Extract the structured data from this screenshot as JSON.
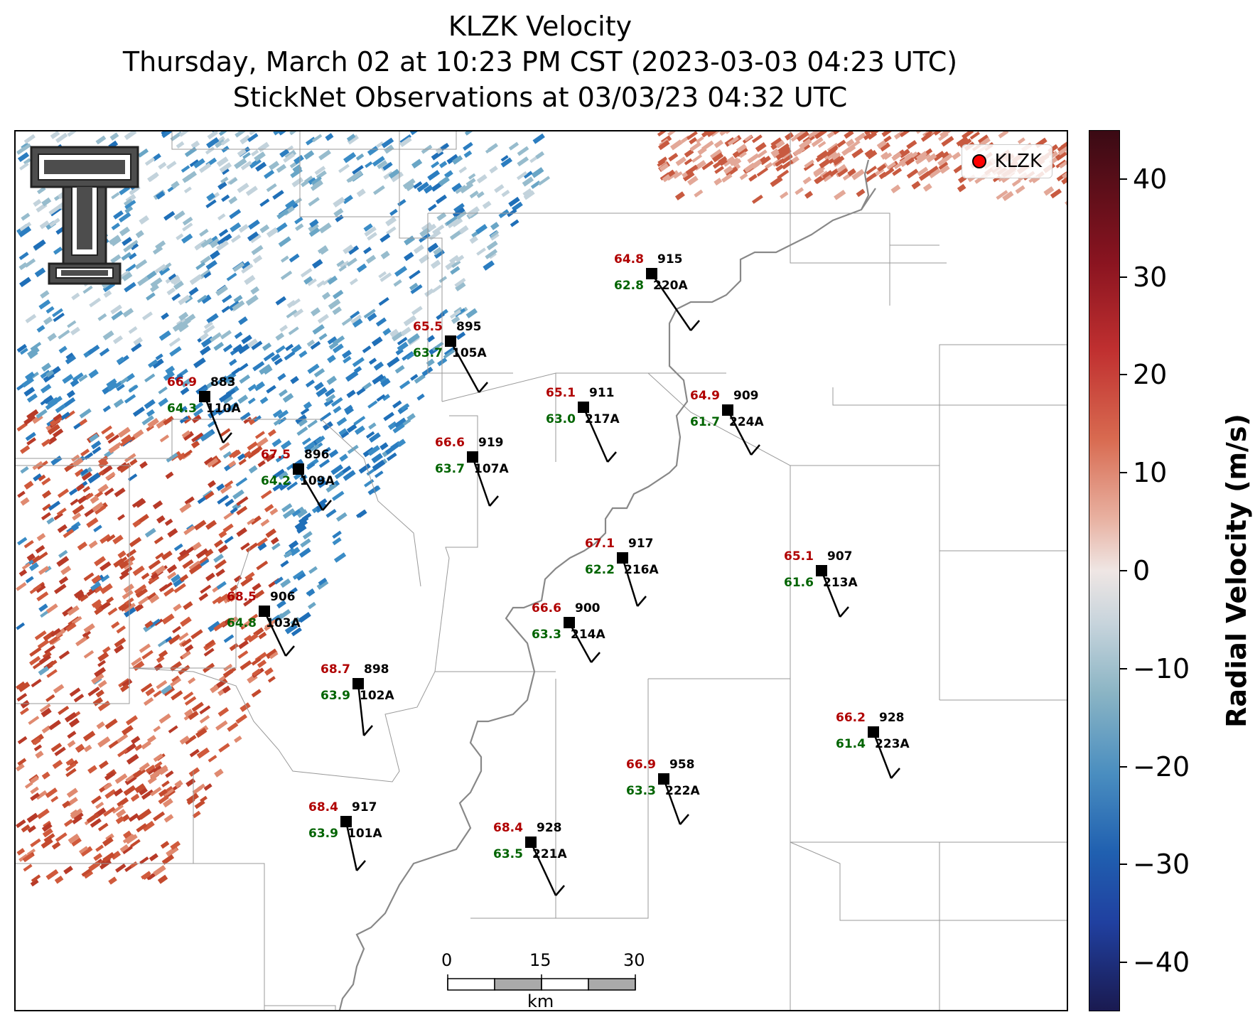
{
  "titles": {
    "line1": "KLZK Velocity",
    "line2": "Thursday, March 02 at 10:23 PM CST (2023-03-03 04:23 UTC)",
    "line3": "StickNet Observations at 03/03/23 04:32 UTC"
  },
  "legend": {
    "radar_label": "KLZK",
    "marker_color": "#ff0000"
  },
  "logo": {
    "name": "double-T-logo"
  },
  "colorbar": {
    "label": "Radial Velocity (m/s)",
    "range": [
      -45,
      45
    ],
    "ticks": [
      "40",
      "30",
      "20",
      "10",
      "0",
      "−10",
      "−20",
      "−30",
      "−40"
    ],
    "colors": {
      "max": "#3a0a14",
      "zero": "#efe6e4",
      "min": "#1a1a50"
    }
  },
  "scale_bar": {
    "labels": [
      "0",
      "15",
      "30"
    ],
    "unit": "km"
  },
  "colors": {
    "temperature": "#b00000",
    "dewpoint": "#006400",
    "river": "#888888",
    "borders": "#999999"
  },
  "stations": [
    {
      "id": "220A",
      "temp": "64.8",
      "dew": "62.8",
      "pres": "915"
    },
    {
      "id": "105A",
      "temp": "65.5",
      "dew": "63.7",
      "pres": "895"
    },
    {
      "id": "110A",
      "temp": "66.9",
      "dew": "64.3",
      "pres": "883"
    },
    {
      "id": "217A",
      "temp": "65.1",
      "dew": "63.0",
      "pres": "911"
    },
    {
      "id": "224A",
      "temp": "64.9",
      "dew": "61.7",
      "pres": "909"
    },
    {
      "id": "107A",
      "temp": "66.6",
      "dew": "63.7",
      "pres": "919"
    },
    {
      "id": "109A",
      "temp": "67.5",
      "dew": "64.2",
      "pres": "896"
    },
    {
      "id": "216A",
      "temp": "67.1",
      "dew": "62.2",
      "pres": "917"
    },
    {
      "id": "213A",
      "temp": "65.1",
      "dew": "61.6",
      "pres": "907"
    },
    {
      "id": "103A",
      "temp": "68.5",
      "dew": "64.8",
      "pres": "906"
    },
    {
      "id": "214A",
      "temp": "66.6",
      "dew": "63.3",
      "pres": "900"
    },
    {
      "id": "102A",
      "temp": "68.7",
      "dew": "63.9",
      "pres": "898"
    },
    {
      "id": "223A",
      "temp": "66.2",
      "dew": "61.4",
      "pres": "928"
    },
    {
      "id": "222A",
      "temp": "66.9",
      "dew": "63.3",
      "pres": "958"
    },
    {
      "id": "101A",
      "temp": "68.4",
      "dew": "63.9",
      "pres": "917"
    },
    {
      "id": "221A",
      "temp": "68.4",
      "dew": "63.5",
      "pres": "928"
    }
  ]
}
